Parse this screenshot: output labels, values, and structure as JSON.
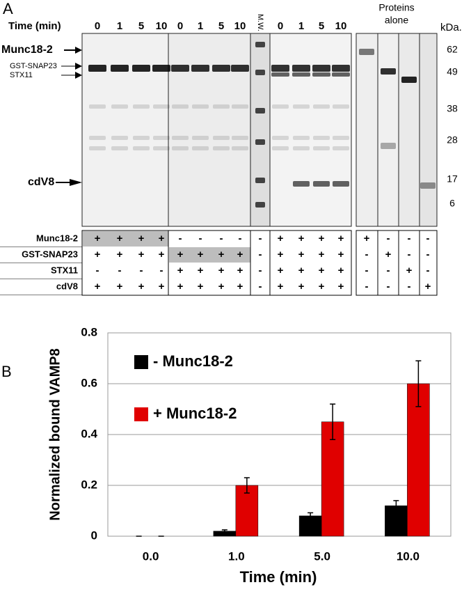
{
  "panel_a": {
    "label": "A",
    "time_label": "Time (min)",
    "time_groups": [
      [
        "0",
        "1",
        "5",
        "10"
      ],
      [
        "0",
        "1",
        "5",
        "10"
      ],
      [
        "0",
        "1",
        "5",
        "10"
      ]
    ],
    "mw_lane": "M.W.",
    "proteins_alone": [
      "Proteins",
      "alone"
    ],
    "kda": "kDa.",
    "mw_markers": [
      "62",
      "49",
      "38",
      "28",
      "17",
      "6"
    ],
    "protein_labels": [
      "Munc18-2",
      "GST-SNAP23",
      "STX11",
      "cdV8"
    ],
    "table": {
      "rows": [
        {
          "label": "Munc18-2",
          "cells": [
            "+",
            "+",
            "+",
            "+",
            "-",
            "-",
            "-",
            "-",
            "-",
            "+",
            "+",
            "+",
            "+",
            "+",
            "-",
            "-",
            "-"
          ]
        },
        {
          "label": "GST-SNAP23",
          "cells": [
            "+",
            "+",
            "+",
            "+",
            "+",
            "+",
            "+",
            "+",
            "-",
            "+",
            "+",
            "+",
            "+",
            "-",
            "+",
            "-",
            "-"
          ]
        },
        {
          "label": "STX11",
          "cells": [
            "-",
            "-",
            "-",
            "-",
            "+",
            "+",
            "+",
            "+",
            "-",
            "+",
            "+",
            "+",
            "+",
            "-",
            "-",
            "+",
            "-"
          ]
        },
        {
          "label": "cdV8",
          "cells": [
            "+",
            "+",
            "+",
            "+",
            "+",
            "+",
            "+",
            "+",
            "-",
            "+",
            "+",
            "+",
            "+",
            "-",
            "-",
            "-",
            "+"
          ]
        }
      ]
    }
  },
  "panel_b_label": "B",
  "chart_data": {
    "type": "bar",
    "x_label": "Time (min)",
    "y_label": "Normalized bound VAMP8",
    "categories": [
      "0.0",
      "1.0",
      "5.0",
      "10.0"
    ],
    "series": [
      {
        "name": "- Munc18-2",
        "color": "#000000",
        "values": [
          0,
          0.02,
          0.08,
          0.12
        ],
        "errors": [
          0,
          0.005,
          0.012,
          0.02
        ]
      },
      {
        "name": "+ Munc18-2",
        "color": "#e00000",
        "values": [
          0,
          0.2,
          0.45,
          0.6
        ],
        "errors": [
          0,
          0.03,
          0.07,
          0.09
        ]
      }
    ],
    "ylim": [
      0,
      0.8
    ],
    "yticks": [
      0,
      0.2,
      0.4,
      0.6,
      0.8
    ],
    "grid": true
  }
}
